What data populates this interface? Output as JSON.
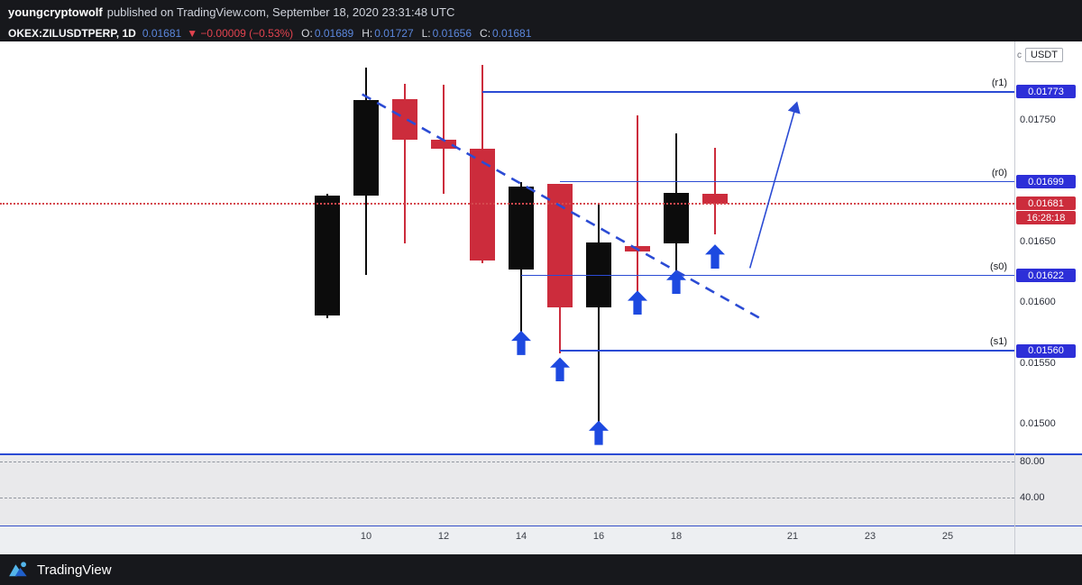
{
  "colors": {
    "bar_bg": "#17181c",
    "candle_up": "#0c0c0c",
    "candle_down": "#cc2c3c",
    "line_blue": "#2b4bd4",
    "accent_blue": "#2d2fd8",
    "arrow_blue": "#1d49e0",
    "value_blue": "#5b87dd",
    "change_red": "#e2434f"
  },
  "publish_header": {
    "author": "youngcryptowolf",
    "rest": "published on TradingView.com, September 18, 2020 23:31:48 UTC"
  },
  "symbol_bar": {
    "symbol": "OKEX:ZILUSDTPERP, 1D",
    "last": "0.01681",
    "change": "▼ −0.00009 (−0.53%)",
    "o_label": "O:",
    "o": "0.01689",
    "h_label": "H:",
    "h": "0.01727",
    "l_label": "L:",
    "l": "0.01656",
    "c_label": "C:",
    "c": "0.01681"
  },
  "price_axis": {
    "unit_prefix": "c",
    "unit": "USDT",
    "last_price": "0.01681",
    "countdown": "16:28:18"
  },
  "footer": {
    "brand": "TradingView"
  },
  "chart_data": {
    "type": "candlestick",
    "symbol": "OKEX:ZILUSDTPERP",
    "interval": "1D",
    "x_unit": "September 2020, day of month",
    "ylim": [
      0.014755,
      0.018145
    ],
    "candles": [
      {
        "day": 9,
        "o": 0.01589,
        "h": 0.01689,
        "l": 0.01587,
        "c": 0.01688,
        "dir": "up"
      },
      {
        "day": 10,
        "o": 0.01688,
        "h": 0.01793,
        "l": 0.01622,
        "c": 0.01766,
        "dir": "up"
      },
      {
        "day": 11,
        "o": 0.01767,
        "h": 0.0178,
        "l": 0.01648,
        "c": 0.01734,
        "dir": "down"
      },
      {
        "day": 12,
        "o": 0.01734,
        "h": 0.01779,
        "l": 0.01689,
        "c": 0.01726,
        "dir": "down"
      },
      {
        "day": 13,
        "o": 0.01726,
        "h": 0.01795,
        "l": 0.01632,
        "c": 0.01634,
        "dir": "down"
      },
      {
        "day": 14,
        "o": 0.01627,
        "h": 0.01699,
        "l": 0.01573,
        "c": 0.01695,
        "dir": "up"
      },
      {
        "day": 15,
        "o": 0.01697,
        "h": 0.01697,
        "l": 0.01558,
        "c": 0.01596,
        "dir": "down"
      },
      {
        "day": 16,
        "o": 0.01596,
        "h": 0.01682,
        "l": 0.015,
        "c": 0.01649,
        "dir": "up"
      },
      {
        "day": 17,
        "o": 0.01646,
        "h": 0.01754,
        "l": 0.01604,
        "c": 0.01642,
        "dir": "down"
      },
      {
        "day": 18,
        "o": 0.01648,
        "h": 0.01739,
        "l": 0.01622,
        "c": 0.0169,
        "dir": "up"
      },
      {
        "day": 19,
        "o": 0.01689,
        "h": 0.01727,
        "l": 0.01656,
        "c": 0.01681,
        "dir": "down"
      }
    ],
    "levels": [
      {
        "name": "(r1)",
        "price": 0.01773,
        "label": "0.01773",
        "start_day": 13
      },
      {
        "name": "(r0)",
        "price": 0.01699,
        "label": "0.01699",
        "start_day": 15
      },
      {
        "name": "(s0)",
        "price": 0.01622,
        "label": "0.01622",
        "start_day": 14
      },
      {
        "name": "(s1)",
        "price": 0.0156,
        "label": "0.01560",
        "start_day": 15
      }
    ],
    "current_price": 0.01681,
    "y_ticks": [
      {
        "price": 0.0175,
        "label": "0.01750"
      },
      {
        "price": 0.017,
        "label": "0.01700"
      },
      {
        "price": 0.0165,
        "label": "0.01650"
      },
      {
        "price": 0.016,
        "label": "0.01600"
      },
      {
        "price": 0.0155,
        "label": "0.01550"
      },
      {
        "price": 0.015,
        "label": "0.01500"
      }
    ],
    "x_ticks": [
      {
        "day": 10,
        "label": "10"
      },
      {
        "day": 12,
        "label": "12"
      },
      {
        "day": 14,
        "label": "14"
      },
      {
        "day": 16,
        "label": "16"
      },
      {
        "day": 18,
        "label": "18"
      },
      {
        "day": 21,
        "label": "21"
      },
      {
        "day": 23,
        "label": "23"
      },
      {
        "day": 25,
        "label": "25"
      }
    ],
    "buy_arrows": [
      {
        "day": 14,
        "price": 0.01578
      },
      {
        "day": 15,
        "price": 0.01556
      },
      {
        "day": 16,
        "price": 0.01504
      },
      {
        "day": 17,
        "price": 0.01611
      },
      {
        "day": 18,
        "price": 0.01628
      },
      {
        "day": 19,
        "price": 0.01649
      }
    ],
    "trendline": {
      "style": "dashed",
      "from": {
        "day": 9.9,
        "price": 0.01771
      },
      "to": {
        "day": 20.2,
        "price": 0.01586
      }
    },
    "projection_arrow": {
      "from": {
        "day": 19.9,
        "price": 0.01628
      },
      "to": {
        "day": 21.1,
        "price": 0.01763
      }
    },
    "indicator_pane": {
      "tick_labels": [
        "80.00",
        "40.00"
      ]
    }
  }
}
